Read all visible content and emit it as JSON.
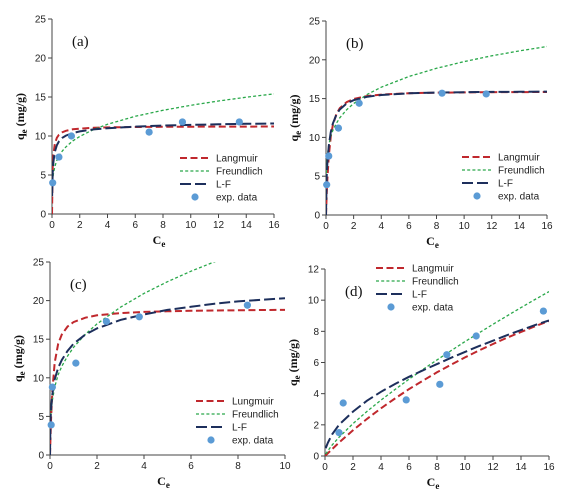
{
  "colors": {
    "langmuir": "#c0282d",
    "freundlich": "#2aa84a",
    "lf": "#1d2f5c",
    "exp": "#5b9bd5"
  },
  "chart_data": [
    {
      "type": "line",
      "panel": "(a)",
      "xlabel": "C",
      "xlabel_sub": "e",
      "ylabel": "q",
      "ylabel_sub": "e",
      "ylabel_unit": " (mg/g)",
      "xlim": [
        0,
        16
      ],
      "ylim": [
        0,
        25
      ],
      "xticks": [
        0,
        2,
        4,
        6,
        8,
        10,
        12,
        14,
        16
      ],
      "yticks": [
        0,
        5,
        10,
        15,
        20,
        25
      ],
      "legend_position": "right-middle",
      "legend": [
        "Langmuir",
        "Freundlich",
        "L-F",
        "exp. data"
      ],
      "exp_data": {
        "x": [
          0.05,
          0.5,
          1.4,
          7.0,
          9.4,
          13.5
        ],
        "y": [
          4.0,
          7.3,
          10.0,
          10.5,
          11.8,
          11.8
        ]
      },
      "series": [
        {
          "name": "Langmuir",
          "x": [
            0,
            0.05,
            0.1,
            0.2,
            0.35,
            0.5,
            0.75,
            1,
            1.5,
            2,
            3,
            4,
            6,
            8,
            10,
            12,
            14,
            16
          ],
          "y": [
            0,
            6.08,
            7.58,
            8.99,
            9.78,
            10.16,
            10.49,
            10.67,
            10.86,
            10.95,
            11.05,
            11.1,
            11.15,
            11.18,
            11.19,
            11.2,
            11.21,
            11.22
          ]
        },
        {
          "name": "Freundlich",
          "x": [
            0.02,
            0.05,
            0.1,
            0.2,
            0.35,
            0.5,
            0.75,
            1,
            1.5,
            2,
            3,
            4,
            6,
            8,
            10,
            12,
            14,
            16
          ],
          "y": [
            3.53,
            4.38,
            5.15,
            6.06,
            6.9,
            7.43,
            8.09,
            8.6,
            9.37,
            9.95,
            10.83,
            11.5,
            12.52,
            13.3,
            13.94,
            14.49,
            14.97,
            15.4
          ]
        },
        {
          "name": "L-F",
          "x": [
            0.01,
            0.03,
            0.05,
            0.1,
            0.2,
            0.35,
            0.5,
            0.75,
            1,
            1.5,
            2,
            3,
            4,
            6,
            8,
            10,
            12,
            14,
            16
          ],
          "y": [
            2.31,
            4.2,
            5.29,
            6.68,
            7.96,
            8.83,
            9.3,
            9.77,
            10.05,
            10.38,
            10.59,
            10.84,
            11.0,
            11.2,
            11.33,
            11.42,
            11.5,
            11.56,
            11.6
          ]
        }
      ]
    },
    {
      "type": "line",
      "panel": "(b)",
      "xlabel": "C",
      "xlabel_sub": "e",
      "ylabel": "q",
      "ylabel_sub": "e",
      "ylabel_unit": " (mg/g)",
      "xlim": [
        0,
        16
      ],
      "ylim": [
        0,
        25
      ],
      "xticks": [
        0,
        2,
        4,
        6,
        8,
        10,
        12,
        14,
        16
      ],
      "yticks": [
        0,
        5,
        10,
        15,
        20,
        25
      ],
      "legend_position": "right-middle",
      "legend": [
        "Langmuir",
        "Freundlich",
        "L-F",
        "exp. data"
      ],
      "exp_data": {
        "x": [
          0.05,
          0.2,
          0.9,
          2.4,
          8.4,
          11.6
        ],
        "y": [
          3.9,
          7.6,
          11.2,
          14.4,
          15.7,
          15.6
        ]
      },
      "series": [
        {
          "name": "Langmuir",
          "x": [
            0,
            0.05,
            0.1,
            0.2,
            0.35,
            0.5,
            0.75,
            1,
            1.5,
            2,
            3,
            4,
            6,
            8,
            10,
            12,
            14,
            16
          ],
          "y": [
            0,
            2.65,
            4.7,
            7.63,
            10.13,
            11.62,
            13.02,
            13.76,
            14.55,
            14.95,
            15.34,
            15.52,
            15.69,
            15.76,
            15.8,
            15.82,
            15.84,
            15.85
          ]
        },
        {
          "name": "Freundlich",
          "x": [
            0.02,
            0.05,
            0.1,
            0.2,
            0.35,
            0.5,
            0.75,
            1,
            1.5,
            2,
            3,
            4,
            6,
            8,
            10,
            12,
            14,
            16
          ],
          "y": [
            5.39,
            6.62,
            7.72,
            9.0,
            10.18,
            10.92,
            11.82,
            12.53,
            13.57,
            14.36,
            15.56,
            16.47,
            17.85,
            18.9,
            19.77,
            20.51,
            21.15,
            21.72
          ]
        },
        {
          "name": "L-F",
          "x": [
            0,
            0.05,
            0.1,
            0.2,
            0.35,
            0.5,
            0.75,
            1,
            1.5,
            2,
            3,
            4,
            6,
            8,
            10,
            12,
            14,
            16
          ],
          "y": [
            0,
            5.0,
            6.77,
            8.93,
            10.69,
            11.8,
            12.92,
            13.6,
            14.38,
            14.8,
            15.25,
            15.47,
            15.68,
            15.77,
            15.82,
            15.86,
            15.88,
            15.9
          ]
        }
      ]
    },
    {
      "type": "line",
      "panel": "(c)",
      "xlabel": "C",
      "xlabel_sub": "e",
      "ylabel": "q",
      "ylabel_sub": "e",
      "ylabel_unit": " (mg/g)",
      "xlim": [
        0,
        10
      ],
      "ylim": [
        0,
        25
      ],
      "xticks": [
        0,
        2,
        4,
        6,
        8,
        10
      ],
      "yticks": [
        0,
        5,
        10,
        15,
        20,
        25
      ],
      "legend_position": "bottom-right",
      "legend": [
        "Lungmuir",
        "Freundlich",
        "L-F",
        "exp. data"
      ],
      "exp_data": {
        "x": [
          0.05,
          0.1,
          1.1,
          2.4,
          3.8,
          8.4
        ],
        "y": [
          3.9,
          8.8,
          11.9,
          17.3,
          17.9,
          19.4
        ]
      },
      "series": [
        {
          "name": "Lungmuir",
          "x": [
            0,
            0.02,
            0.05,
            0.1,
            0.2,
            0.35,
            0.5,
            0.75,
            1,
            1.5,
            2,
            3,
            4,
            5,
            6,
            7,
            8,
            9,
            10
          ],
          "y": [
            0,
            2.3,
            5.13,
            8.41,
            11.98,
            14.42,
            15.61,
            16.65,
            17.21,
            17.79,
            18.09,
            18.38,
            18.53,
            18.62,
            18.68,
            18.72,
            18.75,
            18.78,
            18.8
          ]
        },
        {
          "name": "Freundlich",
          "x": [
            0.02,
            0.05,
            0.1,
            0.2,
            0.35,
            0.5,
            0.75,
            1,
            1.5,
            2,
            3,
            4,
            5,
            6,
            7,
            8,
            9,
            10
          ],
          "y": [
            4.36,
            5.77,
            7.13,
            8.81,
            10.42,
            11.49,
            12.83,
            13.94,
            15.63,
            16.98,
            19.15,
            20.93,
            22.45,
            23.81,
            25.03,
            26.14,
            27.17,
            28.13
          ]
        },
        {
          "name": "L-F",
          "x": [
            0,
            0.02,
            0.05,
            0.1,
            0.2,
            0.35,
            0.5,
            0.75,
            1,
            1.5,
            2,
            3,
            4,
            5,
            6,
            7,
            8,
            9,
            10
          ],
          "y": [
            0,
            4.5,
            6.2,
            7.9,
            9.8,
            11.3,
            12.3,
            13.5,
            14.4,
            15.6,
            16.4,
            17.5,
            18.2,
            18.8,
            19.2,
            19.6,
            19.9,
            20.1,
            20.3
          ]
        }
      ]
    },
    {
      "type": "line",
      "panel": "(d)",
      "xlabel": "C",
      "xlabel_sub": "e",
      "ylabel": "q",
      "ylabel_sub": "e",
      "ylabel_unit": " (mg/g)",
      "xlim": [
        0,
        16
      ],
      "ylim": [
        0,
        12
      ],
      "xticks": [
        0,
        2,
        4,
        6,
        8,
        10,
        12,
        14,
        16
      ],
      "yticks": [
        0,
        2,
        4,
        6,
        8,
        10,
        12
      ],
      "legend_position": "top-left",
      "legend": [
        "Langmuir",
        "Freundlich",
        "L-F",
        "exp. data"
      ],
      "exp_data": {
        "x": [
          1.0,
          1.3,
          5.8,
          8.2,
          8.7,
          10.8,
          15.6
        ],
        "y": [
          1.5,
          3.4,
          3.6,
          4.6,
          6.5,
          7.7,
          9.3
        ]
      },
      "series": [
        {
          "name": "Langmuir",
          "x": [
            0,
            0.5,
            1,
            2,
            3,
            4,
            5,
            6,
            7,
            8,
            9,
            10,
            11,
            12,
            13,
            14,
            15,
            16
          ],
          "y": [
            0,
            0.43,
            0.86,
            1.65,
            2.38,
            3.06,
            3.69,
            4.29,
            4.84,
            5.37,
            5.86,
            6.33,
            6.77,
            7.19,
            7.59,
            7.96,
            8.32,
            8.66
          ]
        },
        {
          "name": "Freundlich",
          "x": [
            0.05,
            0.2,
            0.5,
            1,
            2,
            3,
            4,
            5,
            6,
            7,
            8,
            9,
            10,
            11,
            12,
            13,
            14,
            15,
            16
          ],
          "y": [
            0.12,
            0.33,
            0.69,
            1.2,
            2.08,
            2.86,
            3.59,
            4.27,
            4.93,
            5.56,
            6.17,
            6.76,
            7.34,
            7.9,
            8.45,
            8.99,
            9.52,
            10.04,
            10.55
          ]
        },
        {
          "name": "L-F",
          "x": [
            0.05,
            0.2,
            0.5,
            1,
            2,
            3,
            4,
            5,
            6,
            7,
            8,
            9,
            10,
            11,
            12,
            13,
            14,
            15,
            16
          ],
          "y": [
            0.5,
            0.84,
            1.38,
            2.0,
            2.85,
            3.55,
            4.12,
            4.62,
            5.08,
            5.5,
            5.9,
            6.3,
            6.68,
            7.05,
            7.4,
            7.75,
            8.08,
            8.4,
            8.7
          ]
        }
      ]
    }
  ]
}
